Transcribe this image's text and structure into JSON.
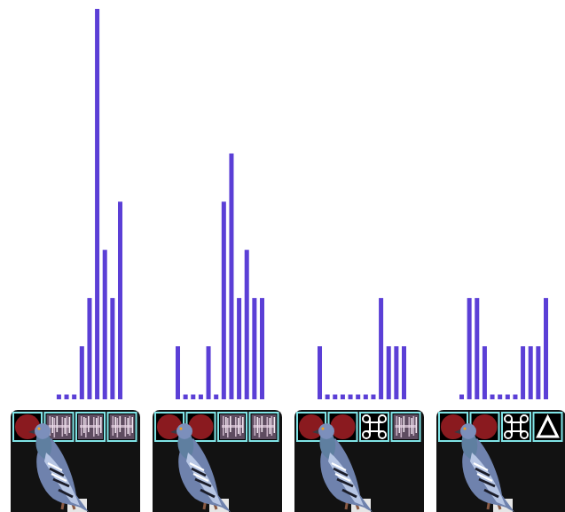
{
  "chart_data": [
    {
      "type": "bar",
      "categories": [
        null,
        null,
        null,
        null,
        null,
        null,
        null,
        null,
        null,
        null,
        null,
        null
      ],
      "values": [
        null,
        null,
        null,
        0,
        0,
        0,
        1,
        2,
        8,
        3,
        2,
        4
      ],
      "color": "#5b3fd6",
      "ylim": [
        -0.1,
        8
      ],
      "tick_labels": false
    },
    {
      "type": "bar",
      "categories": [
        null,
        null,
        null,
        null,
        null,
        null,
        null,
        null,
        null,
        null,
        null,
        null
      ],
      "values": [
        1,
        0,
        0,
        0,
        1,
        0,
        4,
        5,
        2,
        3,
        2,
        2
      ],
      "color": "#5b3fd6",
      "ylim": [
        -0.1,
        8
      ],
      "tick_labels": false
    },
    {
      "type": "bar",
      "categories": [
        null,
        null,
        null,
        null,
        null,
        null,
        null,
        null,
        null,
        null,
        null,
        null
      ],
      "values": [
        1,
        0,
        0,
        0,
        0,
        0,
        0,
        0,
        2,
        1,
        1,
        1
      ],
      "color": "#5b3fd6",
      "ylim": [
        -0.1,
        8
      ],
      "tick_labels": false
    },
    {
      "type": "bar",
      "categories": [
        null,
        null,
        null,
        null,
        null,
        null,
        null,
        null,
        null,
        null,
        null,
        null
      ],
      "values": [
        0,
        2,
        2,
        1,
        0,
        0,
        0,
        0,
        1,
        1,
        1,
        2
      ],
      "color": "#5b3fd6",
      "ylim": [
        -0.1,
        8
      ],
      "tick_labels": false
    }
  ]
}
